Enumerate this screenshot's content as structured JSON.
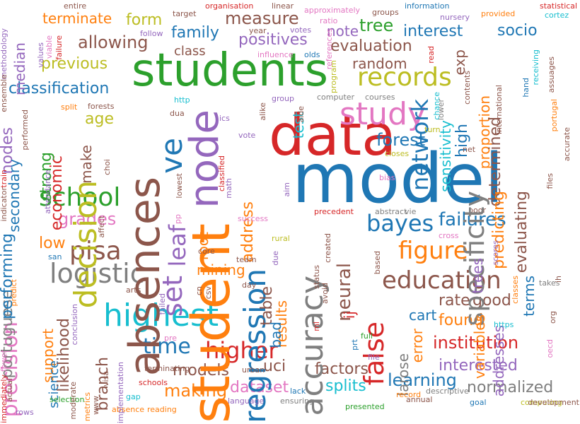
{
  "palette": [
    "#1f77b4",
    "#ff7f0e",
    "#2ca02c",
    "#d62728",
    "#9467bd",
    "#8c564b",
    "#e377c2",
    "#7f7f7f",
    "#bcbd22",
    "#17becf"
  ],
  "words": [
    {
      "t": "model",
      "c": 0
    },
    {
      "t": "student",
      "c": 1
    },
    {
      "t": "students",
      "c": 2
    },
    {
      "t": "data",
      "c": 3
    },
    {
      "t": "node",
      "c": 4
    },
    {
      "t": "absences",
      "c": 5
    },
    {
      "t": "decision",
      "c": 8
    },
    {
      "t": "study",
      "c": 6
    },
    {
      "t": "accuracy",
      "c": 7
    },
    {
      "t": "regression",
      "c": 0
    },
    {
      "t": "highest",
      "c": 9
    },
    {
      "t": "specificity",
      "c": 7
    },
    {
      "t": "logistic",
      "c": 7
    },
    {
      "t": "education",
      "c": 5
    },
    {
      "t": "figure",
      "c": 1
    },
    {
      "t": "records",
      "c": 8
    },
    {
      "t": "school",
      "c": 2
    },
    {
      "t": "set",
      "c": 4
    },
    {
      "t": "higher",
      "c": 3
    },
    {
      "t": "false",
      "c": 3
    },
    {
      "t": "pisa",
      "c": 5
    },
    {
      "t": "bayes",
      "c": 0
    },
    {
      "t": "time",
      "c": 0
    },
    {
      "t": "precision",
      "c": 6
    },
    {
      "t": "network",
      "c": 0
    },
    {
      "t": "leaf",
      "c": 4
    },
    {
      "t": "ve",
      "c": 0
    },
    {
      "t": "neural",
      "c": 5
    },
    {
      "t": "measure",
      "c": 5
    },
    {
      "t": "family",
      "c": 0
    },
    {
      "t": "positives",
      "c": 4
    },
    {
      "t": "evaluation",
      "c": 5
    },
    {
      "t": "interest",
      "c": 0
    },
    {
      "t": "socio",
      "c": 0
    },
    {
      "t": "forest",
      "c": 0
    },
    {
      "t": "failures",
      "c": 0
    },
    {
      "t": "classification",
      "c": 0
    },
    {
      "t": "allowing",
      "c": 5
    },
    {
      "t": "previous",
      "c": 8
    },
    {
      "t": "random",
      "c": 5
    },
    {
      "t": "portuguese",
      "c": 7
    },
    {
      "t": "making",
      "c": 1
    },
    {
      "t": "models",
      "c": 5
    },
    {
      "t": "dataset",
      "c": 6
    },
    {
      "t": "normalized",
      "c": 7
    },
    {
      "t": "learning",
      "c": 0
    },
    {
      "t": "splits",
      "c": 9
    },
    {
      "t": "factors",
      "c": 5
    },
    {
      "t": "interested",
      "c": 4
    },
    {
      "t": "institution",
      "c": 3
    },
    {
      "t": "found",
      "c": 1
    },
    {
      "t": "rate",
      "c": 5
    },
    {
      "t": "good",
      "c": 5
    },
    {
      "t": "cart",
      "c": 0
    },
    {
      "t": "results",
      "c": 1
    },
    {
      "t": "address",
      "c": 1
    },
    {
      "t": "table",
      "c": 5
    },
    {
      "t": "bad",
      "c": 0
    },
    {
      "t": "uci",
      "c": 5
    },
    {
      "t": "terminate",
      "c": 1
    },
    {
      "t": "form",
      "c": 8
    },
    {
      "t": "class",
      "c": 5
    },
    {
      "t": "tree",
      "c": 2
    },
    {
      "t": "note",
      "c": 4
    },
    {
      "t": "median",
      "c": 4
    },
    {
      "t": "nodes",
      "c": 4
    },
    {
      "t": "age",
      "c": 8
    },
    {
      "t": "economic",
      "c": 3
    },
    {
      "t": "secondary",
      "c": 0
    },
    {
      "t": "strong",
      "c": 2
    },
    {
      "t": "make",
      "c": 5
    },
    {
      "t": "grades",
      "c": 6
    },
    {
      "t": "performing",
      "c": 0
    },
    {
      "t": "low",
      "c": 1
    },
    {
      "t": "support",
      "c": 1
    },
    {
      "t": "science",
      "c": 0
    },
    {
      "t": "likelihood",
      "c": 5
    },
    {
      "t": "branch",
      "c": 5
    },
    {
      "t": "root",
      "c": 1
    },
    {
      "t": "exp",
      "c": 1
    },
    {
      "t": "mining",
      "c": 5
    },
    {
      "t": "high",
      "c": 0
    },
    {
      "t": "sensitivity",
      "c": 9
    },
    {
      "t": "proportion",
      "c": 1
    },
    {
      "t": "determined",
      "c": 5
    },
    {
      "t": "predicting",
      "c": 1
    },
    {
      "t": "evaluating",
      "c": 5
    },
    {
      "t": "terms",
      "c": 0
    },
    {
      "t": "variables",
      "c": 1
    },
    {
      "t": "addresses",
      "c": 4
    },
    {
      "t": "error",
      "c": 1
    },
    {
      "t": "test",
      "c": 9
    },
    {
      "t": "larose",
      "c": 7
    },
    {
      "t": "trees",
      "c": 4
    },
    {
      "t": "ij",
      "c": 3
    },
    {
      "t": "lower",
      "c": 7
    },
    {
      "t": "based",
      "c": 7
    },
    {
      "t": "chance",
      "c": 6
    },
    {
      "t": "vie",
      "c": 5
    },
    {
      "t": "abstract",
      "c": 5
    },
    {
      "t": "cross",
      "c": 9
    },
    {
      "t": "poor",
      "c": 5
    },
    {
      "t": "entire",
      "c": 5
    },
    {
      "t": "target",
      "c": 5
    },
    {
      "t": "organisation",
      "c": 3
    },
    {
      "t": "linear",
      "c": 5
    },
    {
      "t": "approximately",
      "c": 6
    },
    {
      "t": "groups",
      "c": 5
    },
    {
      "t": "information",
      "c": 0
    },
    {
      "t": "provided",
      "c": 1
    },
    {
      "t": "statistical",
      "c": 3
    },
    {
      "t": "cortez",
      "c": 9
    },
    {
      "t": "nursery",
      "c": 4
    },
    {
      "t": "ratio",
      "c": 6
    },
    {
      "t": "votes",
      "c": 4
    },
    {
      "t": "year",
      "c": 5
    },
    {
      "t": "follow",
      "c": 4
    },
    {
      "t": "influence",
      "c": 6
    },
    {
      "t": "olds",
      "c": 0
    },
    {
      "t": "methodology",
      "c": 4
    },
    {
      "t": "values",
      "c": 4
    },
    {
      "t": "viable",
      "c": 6
    },
    {
      "t": "failure",
      "c": 3
    },
    {
      "t": "ensemble",
      "c": 5
    },
    {
      "t": "computer",
      "c": 7
    },
    {
      "t": "courses",
      "c": 7
    },
    {
      "t": "group",
      "c": 4
    },
    {
      "t": "alike",
      "c": 5
    },
    {
      "t": "aide",
      "c": 5
    },
    {
      "t": "http",
      "c": 9
    },
    {
      "t": "dua",
      "c": 5
    },
    {
      "t": "ics",
      "c": 4
    },
    {
      "t": "forests",
      "c": 5
    },
    {
      "t": "split",
      "c": 1
    },
    {
      "t": "performed",
      "c": 5
    },
    {
      "t": "train",
      "c": 3
    },
    {
      "t": "indicator",
      "c": 5
    },
    {
      "t": "vote",
      "c": 4
    },
    {
      "t": "turn",
      "c": 5
    },
    {
      "t": "closes",
      "c": 4
    },
    {
      "t": "net",
      "c": 8
    },
    {
      "t": "attendance",
      "c": 8
    },
    {
      "t": "choi",
      "c": 5
    },
    {
      "t": "lowest",
      "c": 5
    },
    {
      "t": "classified",
      "c": 3
    },
    {
      "t": "math",
      "c": 4
    },
    {
      "t": "aim",
      "c": 4
    },
    {
      "t": "bias",
      "c": 0
    },
    {
      "t": "files",
      "c": 0
    },
    {
      "t": "affect",
      "c": 4
    },
    {
      "t": "pp",
      "c": 4
    },
    {
      "t": "success",
      "c": 6
    },
    {
      "t": "precedent",
      "c": 5
    },
    {
      "t": "rural",
      "c": 5
    },
    {
      "t": "created",
      "c": 6
    },
    {
      "t": "due",
      "c": 5
    },
    {
      "t": "team",
      "c": 6
    },
    {
      "t": "san",
      "c": 3
    },
    {
      "t": "core",
      "c": 8
    },
    {
      "t": "failed",
      "c": 5
    },
    {
      "t": "arts",
      "c": 4
    },
    {
      "t": "status",
      "c": 5
    },
    {
      "t": "day",
      "c": 0
    },
    {
      "t": "cn",
      "c": 5
    },
    {
      "t": "csv",
      "c": 4
    },
    {
      "t": "avoid",
      "c": 5
    },
    {
      "t": "ml",
      "c": 5
    },
    {
      "t": "full",
      "c": 5
    },
    {
      "t": "prt",
      "c": 5
    },
    {
      "t": "file",
      "c": 5
    },
    {
      "t": "contents",
      "c": 5
    },
    {
      "t": "https",
      "c": 3
    },
    {
      "t": "oecd",
      "c": 4
    },
    {
      "t": "org",
      "c": 2
    },
    {
      "t": "scores",
      "c": 0
    },
    {
      "t": "classes",
      "c": 4
    },
    {
      "t": "ih",
      "c": 5
    },
    {
      "t": "takes",
      "c": 9
    },
    {
      "t": "predict",
      "c": 6
    },
    {
      "t": "conclusion",
      "c": 5
    },
    {
      "t": "fewer",
      "c": 4
    },
    {
      "t": "pre",
      "c": 1
    },
    {
      "t": "moderate",
      "c": 7
    },
    {
      "t": "terminating",
      "c": 5
    },
    {
      "t": "schools",
      "c": 1
    },
    {
      "t": "www",
      "c": 4
    },
    {
      "t": "implementation",
      "c": 6
    },
    {
      "t": "metrics",
      "c": 6
    },
    {
      "t": "visa",
      "c": 5
    },
    {
      "t": "gap",
      "c": 5
    },
    {
      "t": "absence",
      "c": 3
    },
    {
      "t": "reading",
      "c": 5
    },
    {
      "t": "language",
      "c": 4
    },
    {
      "t": "lack",
      "c": 1
    },
    {
      "t": "ensuring",
      "c": 5
    },
    {
      "t": "presented",
      "c": 9
    },
    {
      "t": "annual",
      "c": 1
    },
    {
      "t": "descriptive",
      "c": 1
    },
    {
      "t": "record",
      "c": 4
    },
    {
      "t": "goal",
      "c": 0
    },
    {
      "t": "computing",
      "c": 7
    },
    {
      "t": "development",
      "c": 2
    },
    {
      "t": "immediately",
      "c": 5
    },
    {
      "t": "rows",
      "c": 7
    },
    {
      "t": "actual",
      "c": 1
    },
    {
      "t": "selection",
      "c": 0
    },
    {
      "t": "urban",
      "c": 8
    },
    {
      "t": "hand",
      "c": 5
    },
    {
      "t": "receiving",
      "c": 3
    },
    {
      "t": "assuages",
      "c": 4
    },
    {
      "t": "portugal",
      "c": 5
    },
    {
      "t": "accurate",
      "c": 2
    },
    {
      "t": "read",
      "c": 5
    },
    {
      "t": "international",
      "c": 0
    },
    {
      "t": "program",
      "c": 9
    },
    {
      "t": "references",
      "c": 5
    },
    {
      "t": "operation",
      "c": 1
    },
    {
      "t": "basis",
      "c": 5
    },
    {
      "t": "find",
      "c": 3
    },
    {
      "t": "assessment",
      "c": 5
    },
    {
      "t": "reliable",
      "c": 8
    },
    {
      "t": "ratios",
      "c": 6
    }
  ]
}
